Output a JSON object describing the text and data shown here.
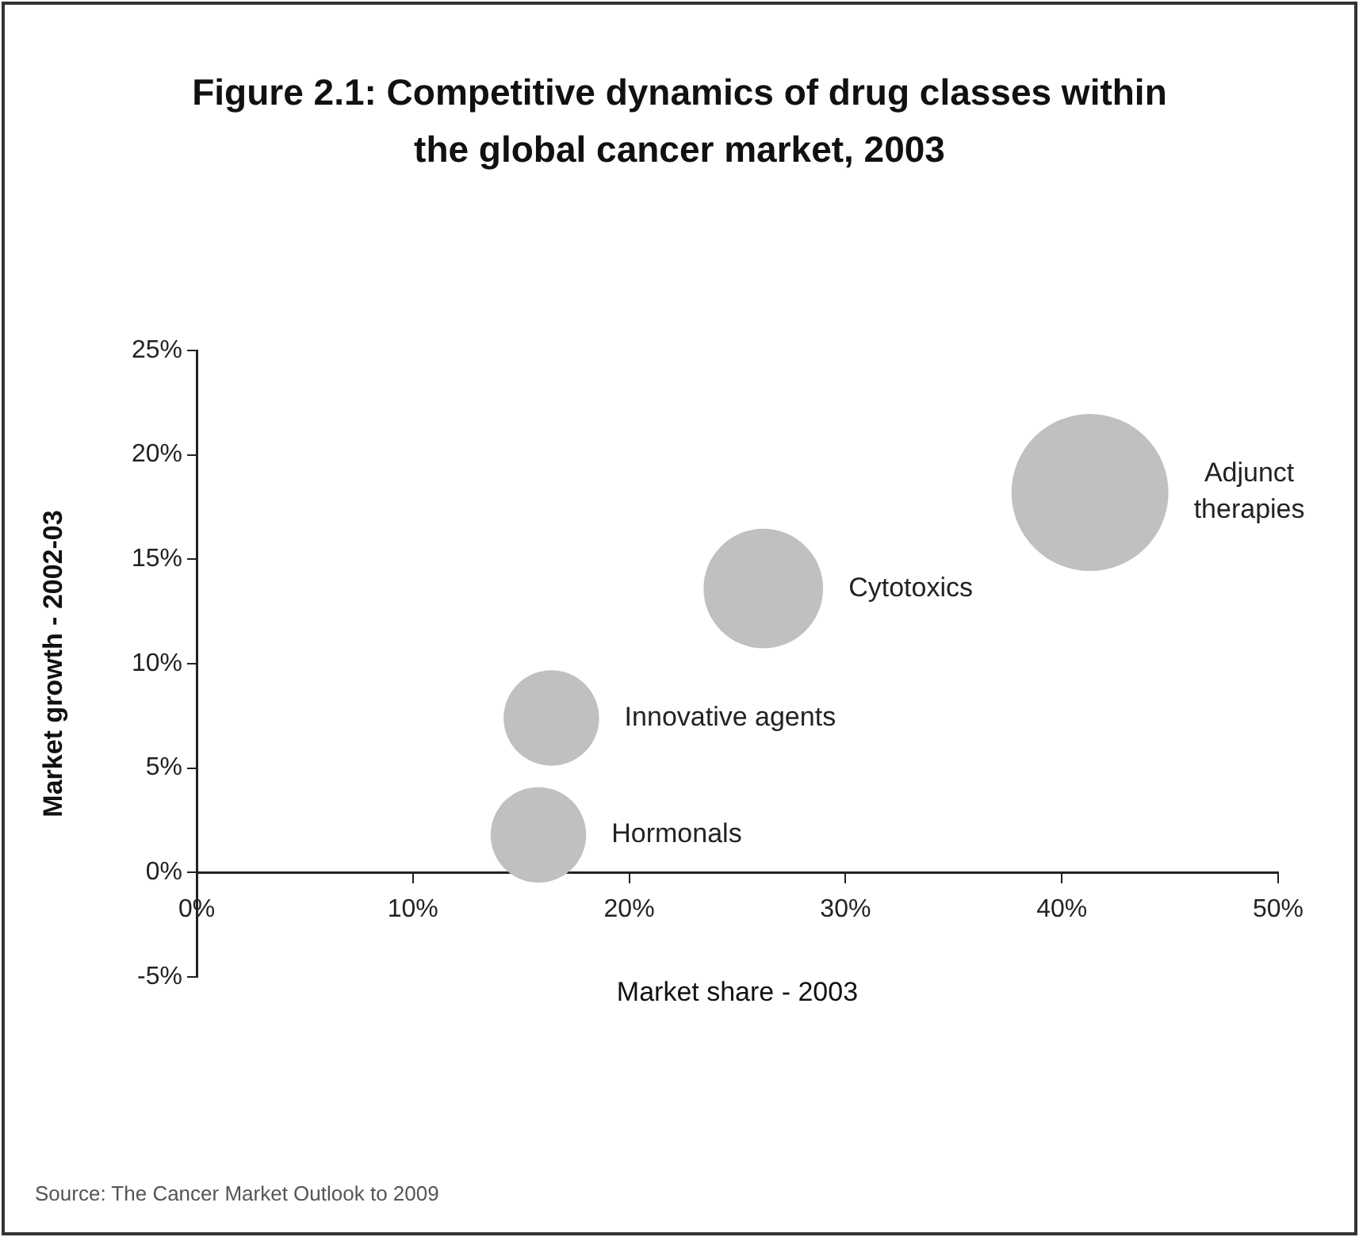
{
  "chart_data": {
    "type": "bubble",
    "title": "Figure 2.1: Competitive dynamics of drug classes within the global cancer market, 2003",
    "xlabel": "Market share - 2003",
    "ylabel": "Market growth - 2002-03",
    "xlim": [
      0,
      50
    ],
    "xticks": [
      {
        "value": 0,
        "label": "0%"
      },
      {
        "value": 10,
        "label": "10%"
      },
      {
        "value": 20,
        "label": "20%"
      },
      {
        "value": 30,
        "label": "30%"
      },
      {
        "value": 40,
        "label": "40%"
      },
      {
        "value": 50,
        "label": "50%"
      }
    ],
    "ylim": [
      -5,
      25
    ],
    "yticks": [
      {
        "value": -5,
        "label": "-5%"
      },
      {
        "value": 0,
        "label": "0%"
      },
      {
        "value": 5,
        "label": "5%"
      },
      {
        "value": 10,
        "label": "10%"
      },
      {
        "value": 15,
        "label": "15%"
      },
      {
        "value": 20,
        "label": "20%"
      },
      {
        "value": 25,
        "label": "25%"
      }
    ],
    "series": [
      {
        "name": "Hormonals",
        "color": "#c0c0c0",
        "x": [
          15.8
        ],
        "values": [
          1.8
        ],
        "sizes": [
          0.37
        ]
      },
      {
        "name": "Innovative agents",
        "color": "#c0c0c0",
        "x": [
          16.4
        ],
        "values": [
          7.4
        ],
        "sizes": [
          0.37
        ]
      },
      {
        "name": "Cytotoxics",
        "color": "#c0c0c0",
        "x": [
          26.2
        ],
        "values": [
          13.6
        ],
        "sizes": [
          0.58
        ]
      },
      {
        "name": "Adjunct therapies",
        "color": "#c0c0c0",
        "x": [
          41.3
        ],
        "values": [
          18.2
        ],
        "sizes": [
          1
        ]
      }
    ],
    "annotations": [
      "Source: The Cancer Market Outlook to 2009"
    ]
  }
}
